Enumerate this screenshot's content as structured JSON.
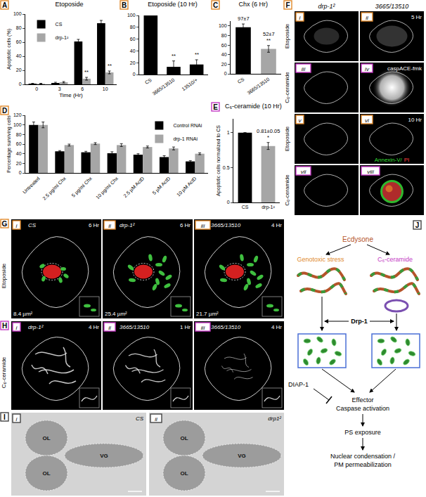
{
  "chart_data": [
    {
      "panel": "A",
      "type": "bar",
      "title": "Etoposide",
      "x_label": "Time (Hr)",
      "y_label": "Apoptotic cells (%)",
      "categories": [
        "0",
        "3",
        "6",
        "10"
      ],
      "series": [
        {
          "name": "CS",
          "color": "#000000",
          "values": [
            1,
            2,
            61,
            87
          ],
          "errors": [
            0.5,
            1,
            3,
            4
          ]
        },
        {
          "name": "drp-1²",
          "color": "#a6a6a6",
          "values": [
            1,
            3,
            8,
            17
          ],
          "errors": [
            0.5,
            1,
            2,
            2
          ]
        }
      ],
      "ylim": [
        0,
        100
      ],
      "yticks": [
        0,
        20,
        40,
        60,
        80,
        100
      ],
      "legend": "top left",
      "annotations": [
        {
          "text": "**",
          "series": 1,
          "index": 2
        },
        {
          "text": "**",
          "series": 1,
          "index": 3
        }
      ]
    },
    {
      "panel": "B",
      "type": "bar",
      "title": "Etoposide (10 Hr)",
      "categories": [
        "CS",
        "3665/13510",
        "13510/+"
      ],
      "values": [
        100,
        13,
        17
      ],
      "errors": [
        0,
        10,
        8
      ],
      "color": "#000000",
      "ylim": [
        0,
        100
      ],
      "yticks": [
        0,
        20,
        40,
        60,
        80,
        100
      ],
      "annotations": [
        {
          "text": "**",
          "index": 1
        },
        {
          "text": "**",
          "index": 2
        }
      ]
    },
    {
      "panel": "C",
      "type": "bar",
      "title": "Chx (6 Hr)",
      "categories": [
        "CS",
        "3665/13510"
      ],
      "values": [
        97,
        52
      ],
      "errors": [
        7,
        7
      ],
      "colors": [
        "#000000",
        "#a6a6a6"
      ],
      "ylim": [
        0,
        110
      ],
      "yticks": [
        0,
        20,
        40,
        60,
        80,
        100
      ],
      "annotations": [
        {
          "text": "97±7",
          "index": 0
        },
        {
          "text": "**",
          "index": 1
        },
        {
          "text": "52±7",
          "index": 1
        }
      ]
    },
    {
      "panel": "D",
      "type": "bar",
      "y_label": "Percentage surviving cells",
      "categories": [
        "Untreated",
        "2.5 µg/ml Chx",
        "5 µg/ml Chx",
        "10 µg/ml Chx",
        "2.5 µM ActD",
        "5 µM ActD",
        "10 µM ActD"
      ],
      "series": [
        {
          "name": "Control RNAi",
          "color": "#000000",
          "values": [
            100,
            45,
            43,
            41,
            38,
            33,
            24
          ],
          "errors": [
            6,
            1.5,
            2,
            3,
            2,
            3,
            1.5
          ]
        },
        {
          "name": "drp-1 RNAi",
          "color": "#a6a6a6",
          "values": [
            100,
            58,
            61,
            58,
            54,
            51,
            40
          ],
          "errors": [
            6,
            2,
            2,
            3,
            2,
            3,
            2
          ]
        }
      ],
      "ylim": [
        0,
        120
      ],
      "yticks": [
        0,
        20,
        40,
        60,
        80,
        100,
        120
      ],
      "legend": "top right"
    },
    {
      "panel": "E",
      "type": "bar",
      "title": "C₆-ceramide (10 Hr)",
      "y_label": "Apoptotic cells normalized to CS",
      "categories": [
        "CS",
        "drp-1²"
      ],
      "values": [
        1,
        0.81
      ],
      "errors": [
        0,
        0.05
      ],
      "colors": [
        "#000000",
        "#a6a6a6"
      ],
      "ylim": [
        0,
        1.2
      ],
      "yticks": [
        0,
        0.5,
        1
      ],
      "annotations": [
        {
          "text": "*",
          "index": 1
        },
        {
          "text": "0.81±0.05",
          "index": 1
        }
      ]
    }
  ],
  "panel_F": {
    "panel": "F",
    "columns": [
      "drp-1²",
      "3665/13510"
    ],
    "rows": [
      {
        "label": "Etoposide",
        "cells": [
          {
            "id": "i"
          },
          {
            "id": "ii",
            "note": "5 Hr"
          }
        ]
      },
      {
        "label": "C₆-ceramide",
        "cells": [
          {
            "id": "iii"
          },
          {
            "id": "iv",
            "note": "caspACE-fmk"
          }
        ]
      },
      {
        "label": "Etoposide",
        "cells": [
          {
            "id": "v"
          },
          {
            "id": "vi",
            "note": "10 Hr"
          }
        ]
      },
      {
        "label": "C₆-ceramide",
        "cells": [
          {
            "id": "vii"
          },
          {
            "id": "viii"
          }
        ]
      }
    ],
    "stain": [
      "Annexin-V/",
      "PI"
    ]
  },
  "panel_G": {
    "panel": "G",
    "row_label": "Etoposide",
    "cells": [
      {
        "id": "i",
        "genotype": "CS",
        "time": "6 Hr",
        "area": "8.4 µm²"
      },
      {
        "id": "ii",
        "genotype": "drp-1²",
        "time": "6 Hr",
        "area": "25.4 µm²"
      },
      {
        "id": "iii",
        "genotype": "3665/13510",
        "time": "4 Hr",
        "area": "21.7 µm²"
      }
    ]
  },
  "panel_H": {
    "panel": "H",
    "row_label": "C₆-ceramide",
    "cells": [
      {
        "id": "i",
        "genotype": "drp-1²",
        "time": "4 Hr"
      },
      {
        "id": "ii",
        "genotype": "3665/13510",
        "time": "1 Hr"
      },
      {
        "id": "iii",
        "genotype": "3665/13510",
        "time": "4 Hr"
      }
    ]
  },
  "panel_I": {
    "panel": "I",
    "cells": [
      {
        "id": "i",
        "genotype": "CS",
        "regions": [
          "OL",
          "OL",
          "VG"
        ]
      },
      {
        "id": "ii",
        "genotype": "drp1²",
        "regions": [
          "OL",
          "OL",
          "VG"
        ]
      }
    ]
  },
  "panel_J": {
    "panel": "J",
    "nodes": {
      "ecdysone": "Ecdysone",
      "stress": "Genotoxic stress",
      "ceramide": "C₆-ceramide",
      "drp1": "Drp-1",
      "diap": "DIAP-1",
      "caspase": [
        "Effector",
        "Caspase activation"
      ],
      "ps": "PS exposure",
      "nuclear": [
        "Nuclear condensation /",
        "PM permeabilization"
      ]
    }
  }
}
